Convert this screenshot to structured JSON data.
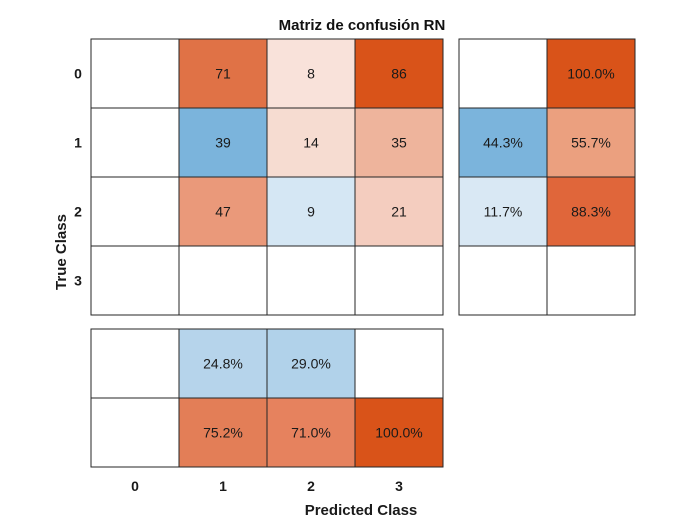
{
  "chart_data": {
    "type": "heatmap",
    "title": "Matriz de confusión RN",
    "xlabel": "Predicted Class",
    "ylabel": "True Class",
    "classes": [
      "0",
      "1",
      "2",
      "3"
    ],
    "matrix": [
      [
        null,
        71,
        8,
        86
      ],
      [
        null,
        39,
        14,
        35
      ],
      [
        null,
        47,
        9,
        21
      ],
      [
        null,
        null,
        null,
        null
      ]
    ],
    "row_summary": [
      [
        null,
        "100.0%"
      ],
      [
        "44.3%",
        "55.7%"
      ],
      [
        "11.7%",
        "88.3%"
      ],
      [
        null,
        null
      ]
    ],
    "column_summary": [
      [
        null,
        "24.8%",
        "29.0%",
        null
      ],
      [
        null,
        "75.2%",
        "71.0%",
        "100.0%"
      ]
    ],
    "colors": {
      "matrix": [
        [
          "#ffffff",
          "#e07246",
          "#f9e2da",
          "#d95319"
        ],
        [
          "#ffffff",
          "#7bb4dc",
          "#f6dcd1",
          "#eeb49c"
        ],
        [
          "#ffffff",
          "#ea997a",
          "#d5e7f4",
          "#f4cdbf"
        ],
        [
          "#ffffff",
          "#ffffff",
          "#ffffff",
          "#ffffff"
        ]
      ],
      "row_summary": [
        [
          "#ffffff",
          "#d95319"
        ],
        [
          "#7bb4dc",
          "#eba07f"
        ],
        [
          "#d9e8f4",
          "#e0663a"
        ],
        [
          "#ffffff",
          "#ffffff"
        ]
      ],
      "column_summary": [
        [
          "#ffffff",
          "#b6d4eb",
          "#b1d2ea",
          "#ffffff"
        ],
        [
          "#ffffff",
          "#e37e57",
          "#e6825e",
          "#d95319"
        ]
      ]
    }
  }
}
